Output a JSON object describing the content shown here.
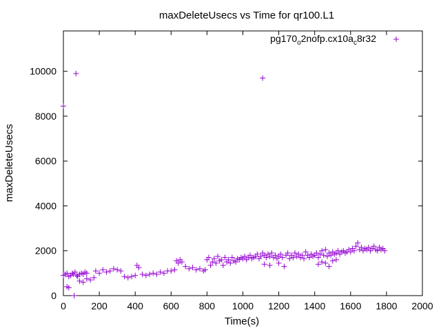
{
  "chart_data": {
    "type": "scatter",
    "title": "maxDeleteUsecs vs Time for qr100.L1",
    "xlabel": "Time(s)",
    "ylabel": "maxDeleteUsecs",
    "xlim": [
      0,
      2000
    ],
    "ylim": [
      0,
      11800
    ],
    "xticks": [
      0,
      200,
      400,
      600,
      800,
      1000,
      1200,
      1400,
      1600,
      1800,
      2000
    ],
    "yticks": [
      0,
      2000,
      4000,
      6000,
      8000,
      10000
    ],
    "grid": false,
    "legend_position": "top-right",
    "marker": "plus",
    "series": [
      {
        "name_parts": [
          "pg170",
          "o",
          "2nofp.cx10a",
          "c",
          "8r32"
        ],
        "color": "#9400d3",
        "points": [
          [
            0,
            8450
          ],
          [
            70,
            9900
          ],
          [
            1110,
            9700
          ],
          [
            60,
            0
          ],
          [
            0,
            900
          ],
          [
            10,
            950
          ],
          [
            20,
            1000
          ],
          [
            30,
            850
          ],
          [
            40,
            900
          ],
          [
            50,
            1000
          ],
          [
            55,
            950
          ],
          [
            65,
            1050
          ],
          [
            75,
            900
          ],
          [
            80,
            850
          ],
          [
            90,
            950
          ],
          [
            100,
            1000
          ],
          [
            110,
            950
          ],
          [
            120,
            1050
          ],
          [
            130,
            1000
          ],
          [
            20,
            400
          ],
          [
            30,
            350
          ],
          [
            90,
            650
          ],
          [
            110,
            600
          ],
          [
            130,
            750
          ],
          [
            150,
            700
          ],
          [
            170,
            800
          ],
          [
            180,
            1100
          ],
          [
            200,
            1000
          ],
          [
            220,
            1150
          ],
          [
            240,
            1050
          ],
          [
            260,
            1100
          ],
          [
            280,
            1200
          ],
          [
            300,
            1150
          ],
          [
            320,
            1100
          ],
          [
            340,
            850
          ],
          [
            360,
            800
          ],
          [
            380,
            850
          ],
          [
            400,
            900
          ],
          [
            410,
            1350
          ],
          [
            420,
            1250
          ],
          [
            440,
            950
          ],
          [
            460,
            900
          ],
          [
            480,
            950
          ],
          [
            500,
            1000
          ],
          [
            520,
            950
          ],
          [
            540,
            1050
          ],
          [
            560,
            1000
          ],
          [
            580,
            1100
          ],
          [
            600,
            1100
          ],
          [
            620,
            1150
          ],
          [
            630,
            1550
          ],
          [
            640,
            1450
          ],
          [
            650,
            1600
          ],
          [
            660,
            1500
          ],
          [
            680,
            1300
          ],
          [
            700,
            1200
          ],
          [
            720,
            1250
          ],
          [
            740,
            1150
          ],
          [
            760,
            1200
          ],
          [
            780,
            1100
          ],
          [
            790,
            1150
          ],
          [
            800,
            1600
          ],
          [
            810,
            1700
          ],
          [
            820,
            1350
          ],
          [
            830,
            1500
          ],
          [
            840,
            1650
          ],
          [
            850,
            1450
          ],
          [
            860,
            1750
          ],
          [
            870,
            1550
          ],
          [
            880,
            1600
          ],
          [
            890,
            1350
          ],
          [
            900,
            1700
          ],
          [
            910,
            1500
          ],
          [
            920,
            1600
          ],
          [
            930,
            1450
          ],
          [
            940,
            1700
          ],
          [
            950,
            1550
          ],
          [
            960,
            1500
          ],
          [
            970,
            1650
          ],
          [
            980,
            1600
          ],
          [
            990,
            1700
          ],
          [
            1000,
            1650
          ],
          [
            1010,
            1750
          ],
          [
            1020,
            1600
          ],
          [
            1030,
            1700
          ],
          [
            1040,
            1800
          ],
          [
            1050,
            1650
          ],
          [
            1060,
            1700
          ],
          [
            1070,
            1750
          ],
          [
            1080,
            1850
          ],
          [
            1090,
            1650
          ],
          [
            1100,
            1750
          ],
          [
            1110,
            1900
          ],
          [
            1120,
            1800
          ],
          [
            1130,
            1700
          ],
          [
            1140,
            1850
          ],
          [
            1150,
            1750
          ],
          [
            1160,
            1900
          ],
          [
            1170,
            1700
          ],
          [
            1180,
            1800
          ],
          [
            1190,
            1650
          ],
          [
            1200,
            1750
          ],
          [
            1120,
            1400
          ],
          [
            1150,
            1350
          ],
          [
            1200,
            1450
          ],
          [
            1230,
            1300
          ],
          [
            1210,
            1850
          ],
          [
            1220,
            1700
          ],
          [
            1240,
            1800
          ],
          [
            1250,
            1900
          ],
          [
            1260,
            1650
          ],
          [
            1270,
            1800
          ],
          [
            1280,
            1700
          ],
          [
            1290,
            1900
          ],
          [
            1300,
            1750
          ],
          [
            1310,
            1850
          ],
          [
            1320,
            1700
          ],
          [
            1330,
            1800
          ],
          [
            1340,
            1650
          ],
          [
            1350,
            1950
          ],
          [
            1360,
            1800
          ],
          [
            1370,
            1700
          ],
          [
            1380,
            1850
          ],
          [
            1390,
            1750
          ],
          [
            1400,
            1800
          ],
          [
            1410,
            1900
          ],
          [
            1420,
            1700
          ],
          [
            1430,
            1850
          ],
          [
            1440,
            2000
          ],
          [
            1450,
            1800
          ],
          [
            1460,
            2050
          ],
          [
            1470,
            1750
          ],
          [
            1480,
            1900
          ],
          [
            1490,
            1800
          ],
          [
            1500,
            1950
          ],
          [
            1510,
            1850
          ],
          [
            1520,
            1900
          ],
          [
            1530,
            2000
          ],
          [
            1540,
            1850
          ],
          [
            1550,
            1950
          ],
          [
            1560,
            2000
          ],
          [
            1570,
            1900
          ],
          [
            1580,
            1950
          ],
          [
            1590,
            2050
          ],
          [
            1600,
            1950
          ],
          [
            1420,
            1400
          ],
          [
            1440,
            1500
          ],
          [
            1460,
            1450
          ],
          [
            1480,
            1300
          ],
          [
            1500,
            1550
          ],
          [
            1520,
            1600
          ],
          [
            1610,
            2100
          ],
          [
            1620,
            2000
          ],
          [
            1630,
            2200
          ],
          [
            1640,
            2350
          ],
          [
            1650,
            2050
          ],
          [
            1660,
            2150
          ],
          [
            1670,
            2000
          ],
          [
            1680,
            2100
          ],
          [
            1690,
            2050
          ],
          [
            1700,
            2150
          ],
          [
            1710,
            2000
          ],
          [
            1720,
            2100
          ],
          [
            1730,
            2200
          ],
          [
            1740,
            2050
          ],
          [
            1750,
            2000
          ],
          [
            1760,
            2150
          ],
          [
            1770,
            2050
          ],
          [
            1780,
            2100
          ],
          [
            1790,
            2000
          ]
        ]
      }
    ]
  }
}
